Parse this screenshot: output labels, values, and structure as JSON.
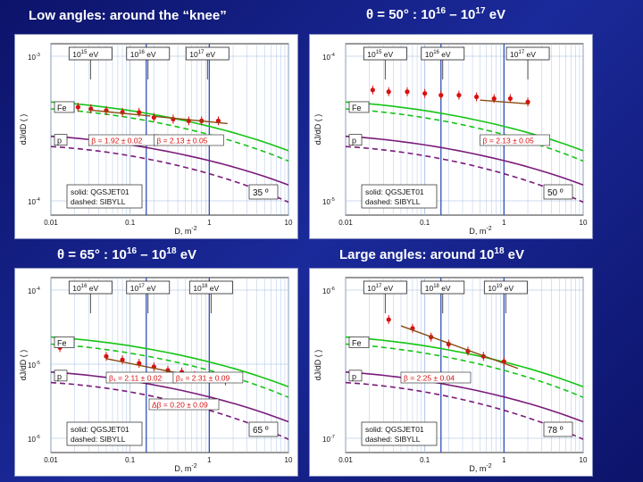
{
  "headings": {
    "top_left": "Low angles: around the “knee”",
    "top_right": {
      "prefix": "θ = 50° : 10",
      "e1": "16",
      "mid": " – 10",
      "e2": "17",
      "suffix": " eV"
    },
    "bottom_left": {
      "prefix": "θ = 65° : 10",
      "e1": "16",
      "mid": " – 10",
      "e2": "18",
      "suffix": " eV"
    },
    "bottom_right": {
      "prefix": "Large angles: around 10",
      "e1": "18",
      "suffix": " eV"
    }
  },
  "colors": {
    "background": "#121c86",
    "green": "#16c416",
    "purple": "#7a1a7a",
    "data_points": "#d81010",
    "fit_line": "#8a4a10",
    "grid": "#9db8e0",
    "vline": "#3050c0"
  },
  "chart_data": [
    {
      "type": "line",
      "xlabel": "D, m",
      "xlabel_exp": "-2",
      "ylabel": "dJ/dD ( )",
      "xlim": [
        0.01,
        10
      ],
      "x_scale": "log",
      "x_ticks": [
        "0.01",
        "0.1",
        "1",
        "10"
      ],
      "y_ticks": [
        {
          "base": "10",
          "exp": "-3"
        },
        {
          "base": "10",
          "exp": "-4"
        }
      ],
      "energy_labels": [
        {
          "base": "10",
          "exp": "15",
          "unit": " eV"
        },
        {
          "base": "10",
          "exp": "16",
          "unit": " eV"
        },
        {
          "base": "10",
          "exp": "17",
          "unit": " eV"
        }
      ],
      "energy_x": [
        0.03,
        0.16,
        0.9
      ],
      "vlines": [
        0.16,
        1.0
      ],
      "curve_labels": [
        "Fe",
        "p"
      ],
      "fits": [
        {
          "label": "β = 1.92 ± 0.02",
          "x": [
            0.03,
            0.18
          ]
        },
        {
          "label": "β = 2.13 ± 0.05",
          "x": [
            0.2,
            1.7
          ]
        }
      ],
      "legend": [
        "solid: QGSJET01",
        "dashed: SIBYLL"
      ],
      "angle": "35 º",
      "points": [
        {
          "x": 0.022,
          "y": 0.63
        },
        {
          "x": 0.032,
          "y": 0.62
        },
        {
          "x": 0.05,
          "y": 0.61
        },
        {
          "x": 0.08,
          "y": 0.6
        },
        {
          "x": 0.13,
          "y": 0.6
        },
        {
          "x": 0.2,
          "y": 0.57
        },
        {
          "x": 0.35,
          "y": 0.56
        },
        {
          "x": 0.55,
          "y": 0.55
        },
        {
          "x": 0.8,
          "y": 0.55
        },
        {
          "x": 1.3,
          "y": 0.55
        }
      ]
    },
    {
      "type": "line",
      "xlabel": "D, m",
      "xlabel_exp": "-2",
      "ylabel": "dJ/dD ( )",
      "xlim": [
        0.01,
        10
      ],
      "x_scale": "log",
      "x_ticks": [
        "0.01",
        "0.1",
        "1",
        "10"
      ],
      "y_ticks": [
        {
          "base": "10",
          "exp": "-4"
        },
        {
          "base": "10",
          "exp": "-5"
        }
      ],
      "energy_labels": [
        {
          "base": "10",
          "exp": "15",
          "unit": " eV"
        },
        {
          "base": "10",
          "exp": "16",
          "unit": " eV"
        },
        {
          "base": "10",
          "exp": "17",
          "unit": " eV"
        }
      ],
      "energy_x": [
        0.03,
        0.16,
        1.9
      ],
      "vlines": [
        0.16,
        1.0
      ],
      "curve_labels": [
        "Fe",
        "p"
      ],
      "fits": [
        {
          "label": "β = 2.13 ± 0.05",
          "x": [
            0.5,
            2.1
          ]
        }
      ],
      "legend": [
        "solid: QGSJET01",
        "dashed: SIBYLL"
      ],
      "angle": "50 º",
      "points": [
        {
          "x": 0.022,
          "y": 0.73
        },
        {
          "x": 0.035,
          "y": 0.72
        },
        {
          "x": 0.06,
          "y": 0.72
        },
        {
          "x": 0.1,
          "y": 0.71
        },
        {
          "x": 0.16,
          "y": 0.7
        },
        {
          "x": 0.27,
          "y": 0.7
        },
        {
          "x": 0.45,
          "y": 0.69
        },
        {
          "x": 0.75,
          "y": 0.68
        },
        {
          "x": 1.2,
          "y": 0.68
        },
        {
          "x": 2.0,
          "y": 0.66
        }
      ]
    },
    {
      "type": "line",
      "xlabel": "D, m",
      "xlabel_exp": "-2",
      "ylabel": "dJ/dD ( )",
      "xlim": [
        0.01,
        10
      ],
      "x_scale": "log",
      "x_ticks": [
        "0.01",
        "0.1",
        "1",
        "10"
      ],
      "y_ticks": [
        {
          "base": "10",
          "exp": "-4"
        },
        {
          "base": "10",
          "exp": "-5"
        },
        {
          "base": "10",
          "exp": "-6"
        }
      ],
      "energy_labels": [
        {
          "base": "10",
          "exp": "16",
          "unit": " eV"
        },
        {
          "base": "10",
          "exp": "17",
          "unit": " eV"
        },
        {
          "base": "10",
          "exp": "18",
          "unit": " eV"
        }
      ],
      "energy_x": [
        0.03,
        0.16,
        1.0
      ],
      "vlines": [
        0.16,
        1.0
      ],
      "curve_labels": [
        "Fe",
        "p"
      ],
      "fits": [
        {
          "label": "β₁ = 2.11 ± 0.02",
          "x": [
            0.05,
            0.35
          ]
        },
        {
          "label": "β₂ = 2.31 ± 0.09",
          "x": [
            0.35,
            1.3
          ]
        },
        {
          "label": "Δβ = 0.20 ± 0.09",
          "x": null
        }
      ],
      "legend": [
        "solid: QGSJET01",
        "dashed: SIBYLL"
      ],
      "angle": "65 º",
      "points": [
        {
          "x": 0.013,
          "y": 0.6
        },
        {
          "x": 0.05,
          "y": 0.55
        },
        {
          "x": 0.08,
          "y": 0.53
        },
        {
          "x": 0.13,
          "y": 0.51
        },
        {
          "x": 0.2,
          "y": 0.49
        },
        {
          "x": 0.3,
          "y": 0.47
        },
        {
          "x": 0.45,
          "y": 0.46
        },
        {
          "x": 0.65,
          "y": 0.44
        },
        {
          "x": 1.0,
          "y": 0.42
        },
        {
          "x": 1.6,
          "y": 0.41
        }
      ]
    },
    {
      "type": "line",
      "xlabel": "D, m",
      "xlabel_exp": "-2",
      "ylabel": "dJ/dD ( )",
      "xlim": [
        0.01,
        10
      ],
      "x_scale": "log",
      "x_ticks": [
        "0.01",
        "0.1",
        "1",
        "10"
      ],
      "y_ticks": [
        {
          "base": "10",
          "exp": "-6"
        },
        {
          "base": "10",
          "exp": "-7"
        }
      ],
      "energy_labels": [
        {
          "base": "10",
          "exp": "17",
          "unit": " eV"
        },
        {
          "base": "10",
          "exp": "18",
          "unit": " eV"
        },
        {
          "base": "10",
          "exp": "19",
          "unit": " eV"
        }
      ],
      "energy_x": [
        0.03,
        0.16,
        1.0
      ],
      "vlines": [
        0.16,
        1.0
      ],
      "curve_labels": [
        "Fe",
        "p"
      ],
      "fits": [
        {
          "label": "β = 2.25 ± 0.04",
          "x": [
            0.05,
            1.5
          ]
        }
      ],
      "legend": [
        "solid: QGSJET01",
        "dashed: SIBYLL"
      ],
      "angle": "78 º",
      "points": [
        {
          "x": 0.035,
          "y": 0.76
        },
        {
          "x": 0.07,
          "y": 0.71
        },
        {
          "x": 0.12,
          "y": 0.66
        },
        {
          "x": 0.2,
          "y": 0.62
        },
        {
          "x": 0.35,
          "y": 0.58
        },
        {
          "x": 0.55,
          "y": 0.55
        },
        {
          "x": 1.0,
          "y": 0.52
        }
      ]
    }
  ]
}
